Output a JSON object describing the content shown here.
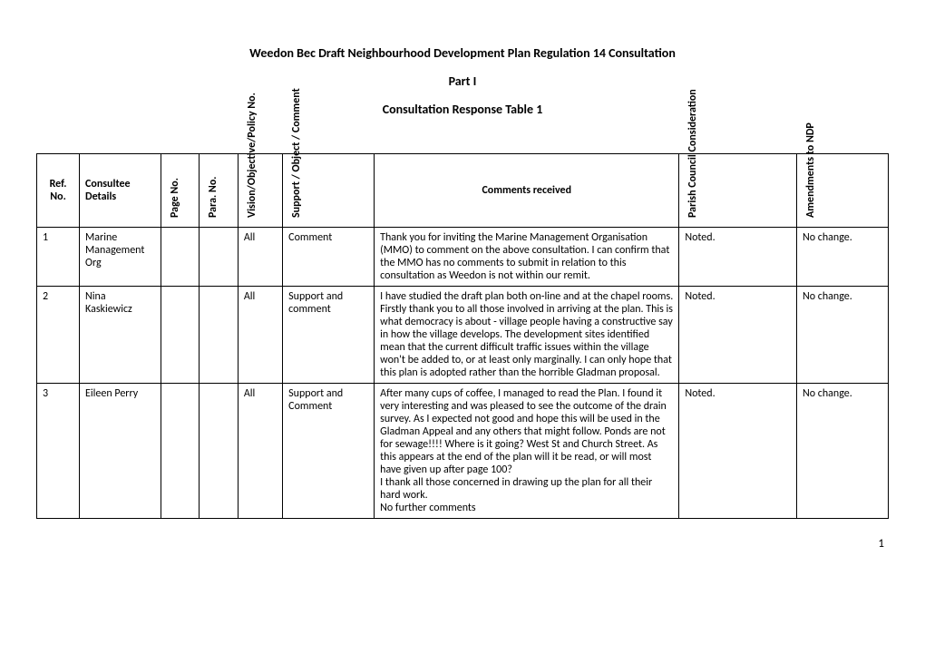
{
  "titles": {
    "main": "Weedon Bec Draft Neighbourhood Development Plan Regulation 14 Consultation",
    "part": "Part I",
    "sub": "Consultation Response Table 1"
  },
  "headers": {
    "ref": "Ref. No.",
    "consultee": "Consultee Details",
    "pageno": "Page No.",
    "parano": "Para. No.",
    "vision": "Vision/Objective/Policy No.",
    "support": "Support / Object / Comment",
    "comments": "Comments received",
    "parish": "Parish Council Consideration",
    "amend": "Amendments to NDP"
  },
  "rows": [
    {
      "ref": "1",
      "consultee": "Marine Management Org",
      "pageno": "",
      "parano": "",
      "vision": "All",
      "support": "Comment",
      "comments": "Thank you for inviting the Marine Management Organisation (MMO) to comment on the above consultation.  I can confirm that the MMO has no comments to submit in relation to this consultation as Weedon is not within our remit.",
      "parish": "Noted.",
      "amend": "No change."
    },
    {
      "ref": "2",
      "consultee": "Nina Kaskiewicz",
      "pageno": "",
      "parano": "",
      "vision": "All",
      "support": "Support and comment",
      "comments": "I have studied the draft plan both on-line and at the chapel rooms. Firstly thank you to all those involved in arriving at the plan. This is what democracy is about - village people having a constructive say in how the village develops. The development sites identified mean that the current difficult traffic issues within the village won't be added to, or at least only marginally. I can only hope that this plan is adopted rather than the horrible Gladman proposal.",
      "parish": "Noted.",
      "amend": "No change."
    },
    {
      "ref": "3",
      "consultee": "Eileen Perry",
      "pageno": "",
      "parano": "",
      "vision": "All",
      "support": "Support and Comment",
      "comments": "After many cups of coffee, I managed to read the Plan. I found it very interesting and was pleased to see the outcome of the drain survey. As I expected not good and hope this will be used in the Gladman Appeal and any others that might follow. Ponds are not for sewage!!!! Where is it going? West St and Church Street. As this appears at the end of the plan will it be read, or will most have given up after page 100?\nI thank all those concerned in drawing up the plan for all their hard work.\nNo further comments",
      "parish": "Noted.",
      "amend": "No change."
    }
  ],
  "pageNumber": "1"
}
